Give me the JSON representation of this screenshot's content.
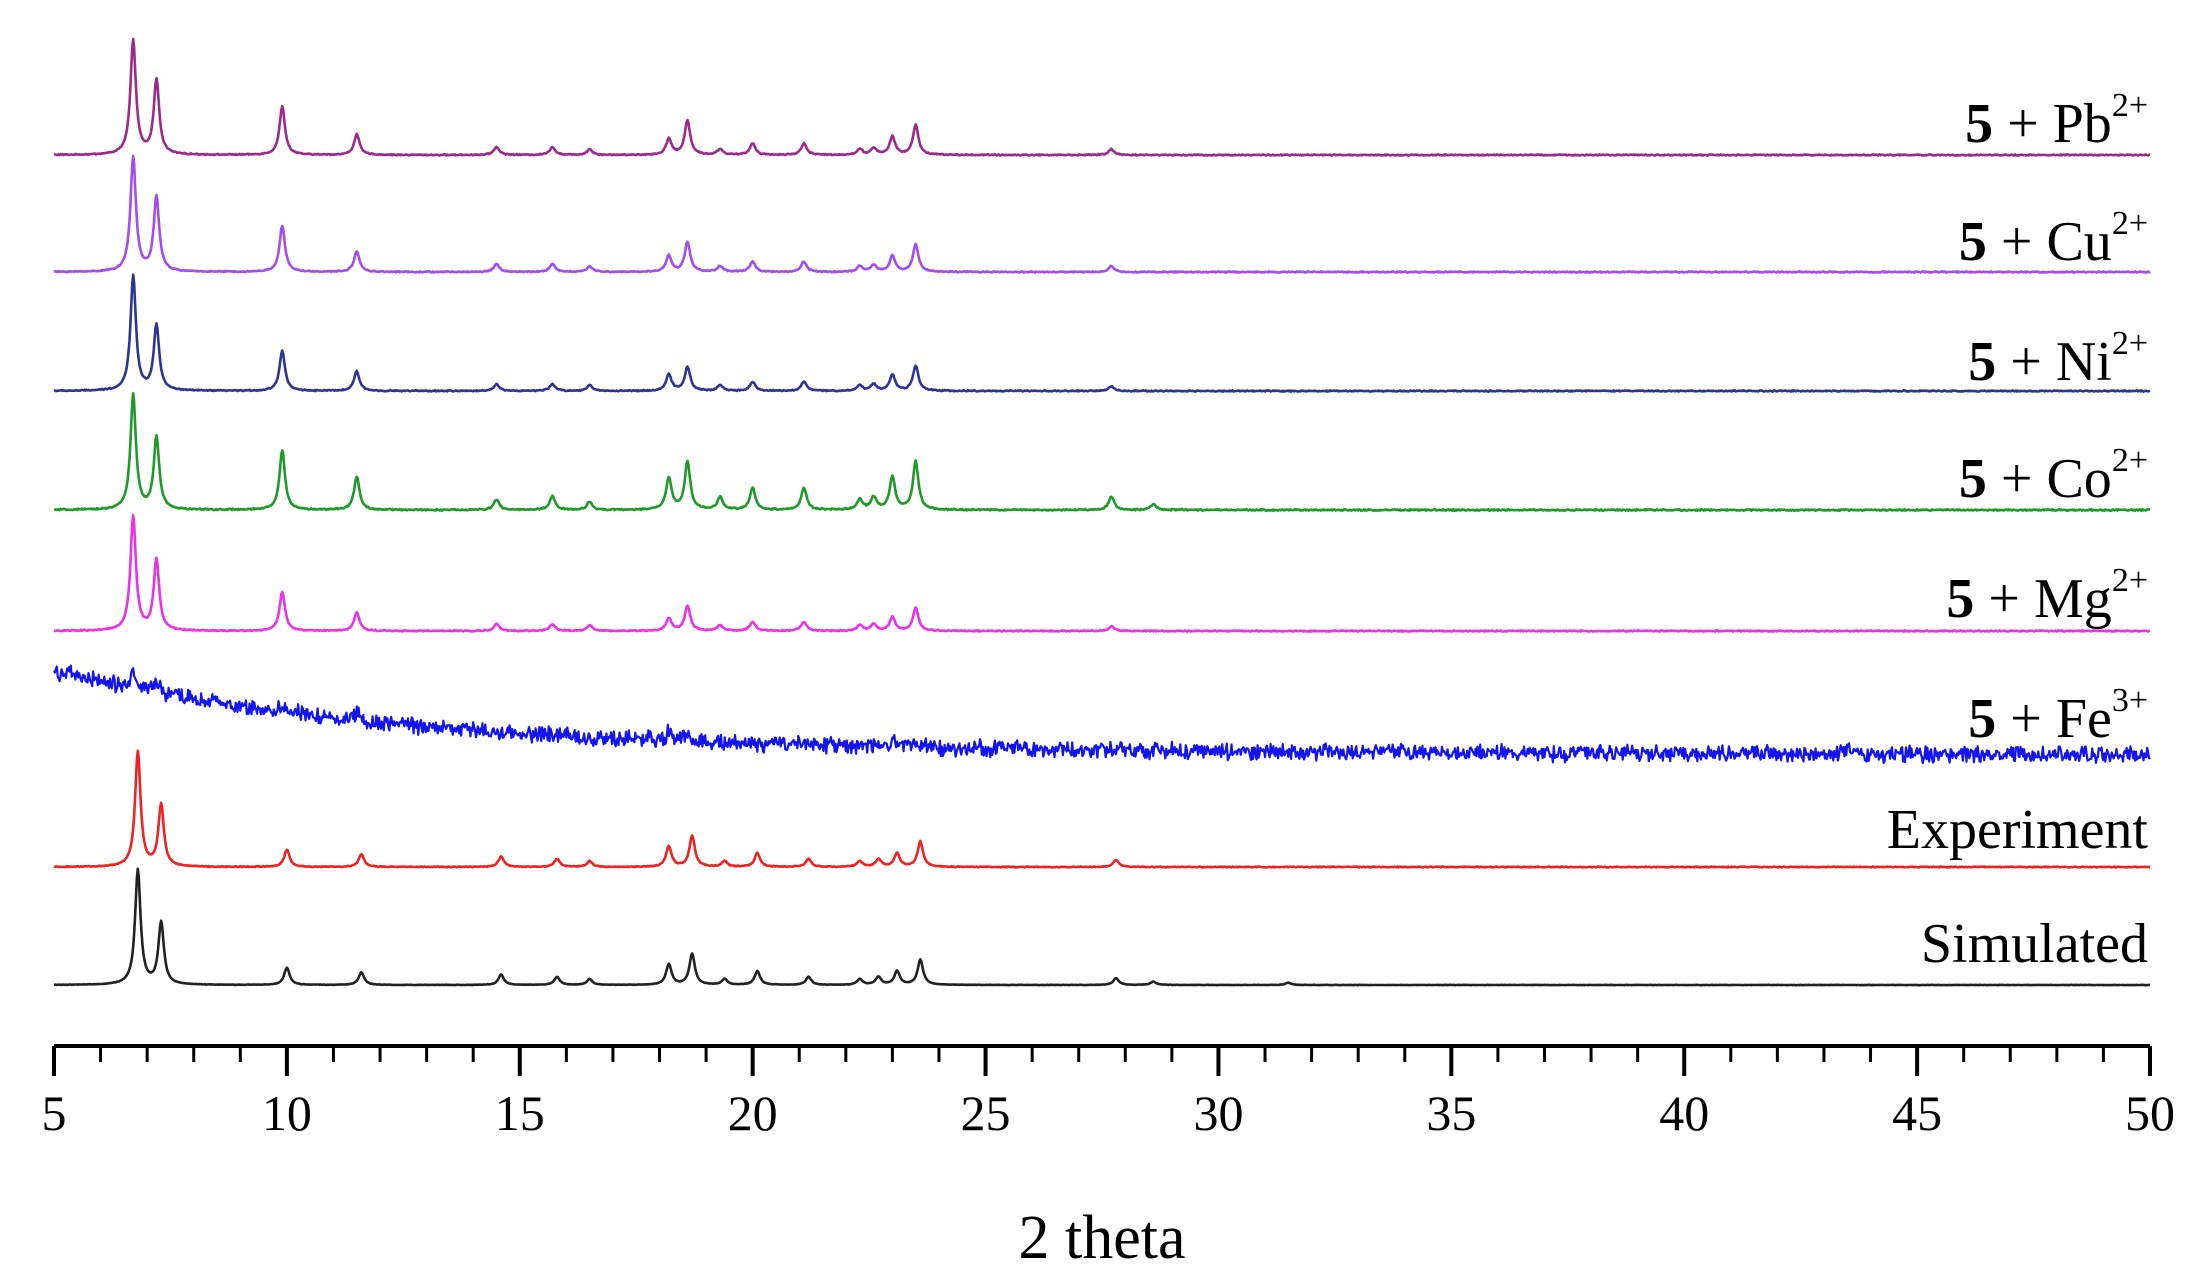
{
  "chart_data": {
    "type": "line",
    "title": "",
    "xlabel": "2 theta",
    "ylabel": "",
    "xlim": [
      5,
      50
    ],
    "xticks": [
      "5",
      "10",
      "15",
      "20",
      "25",
      "30",
      "35",
      "40",
      "45",
      "50"
    ],
    "grid": false,
    "legend": "none",
    "series": [
      {
        "key": "pb",
        "num": "5",
        "plus": " + ",
        "ion": "Pb",
        "charge": "2+",
        "text": "",
        "color": "#9c2a8c",
        "noise": 0.4,
        "decay": 0,
        "peaks": [
          [
            6.7,
            100
          ],
          [
            7.2,
            65
          ],
          [
            9.9,
            42
          ],
          [
            11.5,
            18
          ],
          [
            14.5,
            7
          ],
          [
            15.7,
            7
          ],
          [
            16.5,
            5
          ],
          [
            18.2,
            14
          ],
          [
            18.6,
            30
          ],
          [
            19.3,
            5
          ],
          [
            20.0,
            10
          ],
          [
            21.1,
            10
          ],
          [
            22.3,
            5
          ],
          [
            22.6,
            6
          ],
          [
            23.0,
            16
          ],
          [
            23.5,
            26
          ],
          [
            27.7,
            5
          ]
        ]
      },
      {
        "key": "cu",
        "num": "5",
        "plus": " + ",
        "ion": "Cu",
        "charge": "2+",
        "text": "",
        "color": "#a44cf0",
        "noise": 0.4,
        "decay": 0,
        "peaks": [
          [
            6.7,
            100
          ],
          [
            7.2,
            65
          ],
          [
            9.9,
            40
          ],
          [
            11.5,
            18
          ],
          [
            14.5,
            7
          ],
          [
            15.7,
            7
          ],
          [
            16.5,
            5
          ],
          [
            18.2,
            14
          ],
          [
            18.6,
            26
          ],
          [
            19.3,
            5
          ],
          [
            20.0,
            9
          ],
          [
            21.1,
            9
          ],
          [
            22.3,
            5
          ],
          [
            22.6,
            6
          ],
          [
            23.0,
            14
          ],
          [
            23.5,
            24
          ],
          [
            27.7,
            5
          ]
        ]
      },
      {
        "key": "ni",
        "num": "5",
        "plus": " + ",
        "ion": "Ni",
        "charge": "2+",
        "text": "",
        "color": "#2c3494",
        "noise": 0.4,
        "decay": 0,
        "peaks": [
          [
            6.7,
            100
          ],
          [
            7.2,
            57
          ],
          [
            9.9,
            35
          ],
          [
            11.5,
            17
          ],
          [
            14.5,
            6
          ],
          [
            15.7,
            6
          ],
          [
            16.5,
            5
          ],
          [
            18.2,
            14
          ],
          [
            18.6,
            21
          ],
          [
            19.3,
            5
          ],
          [
            20.0,
            8
          ],
          [
            21.1,
            8
          ],
          [
            22.3,
            5
          ],
          [
            22.6,
            6
          ],
          [
            23.0,
            14
          ],
          [
            23.5,
            22
          ],
          [
            27.7,
            4
          ]
        ]
      },
      {
        "key": "co",
        "num": "5",
        "plus": " + ",
        "ion": "Co",
        "charge": "2+",
        "text": "",
        "color": "#1f9a29",
        "noise": 0.5,
        "decay": 0,
        "peaks": [
          [
            6.7,
            100
          ],
          [
            7.2,
            63
          ],
          [
            9.9,
            52
          ],
          [
            11.5,
            29
          ],
          [
            14.5,
            9
          ],
          [
            15.7,
            12
          ],
          [
            16.5,
            7
          ],
          [
            18.2,
            28
          ],
          [
            18.6,
            42
          ],
          [
            19.3,
            11
          ],
          [
            20.0,
            19
          ],
          [
            21.1,
            19
          ],
          [
            22.3,
            9
          ],
          [
            22.6,
            11
          ],
          [
            23.0,
            29
          ],
          [
            23.5,
            42
          ],
          [
            27.7,
            12
          ],
          [
            28.6,
            5
          ]
        ]
      },
      {
        "key": "mg",
        "num": "5",
        "plus": " + ",
        "ion": "Mg",
        "charge": "2+",
        "text": "",
        "color": "#ea32e8",
        "noise": 0.4,
        "decay": 0,
        "peaks": [
          [
            6.7,
            100
          ],
          [
            7.2,
            62
          ],
          [
            9.9,
            34
          ],
          [
            11.5,
            16
          ],
          [
            14.5,
            6
          ],
          [
            15.7,
            6
          ],
          [
            16.5,
            5
          ],
          [
            18.2,
            11
          ],
          [
            18.6,
            22
          ],
          [
            19.3,
            5
          ],
          [
            20.0,
            8
          ],
          [
            21.1,
            8
          ],
          [
            22.3,
            5
          ],
          [
            22.6,
            6
          ],
          [
            23.0,
            12
          ],
          [
            23.5,
            20
          ],
          [
            27.7,
            4
          ]
        ]
      },
      {
        "key": "fe",
        "num": "5",
        "plus": " + ",
        "ion": "Fe",
        "charge": "3+",
        "text": "",
        "color": "#1414ee",
        "noise": 5.5,
        "decay": 70,
        "peaks": [
          [
            6.7,
            15
          ],
          [
            7.2,
            9
          ],
          [
            9.9,
            6
          ],
          [
            11.5,
            8
          ],
          [
            18.2,
            7
          ],
          [
            18.6,
            8
          ],
          [
            23.0,
            7
          ],
          [
            23.5,
            6
          ],
          [
            43.5,
            5
          ]
        ]
      },
      {
        "key": "exp",
        "num": "",
        "plus": "",
        "ion": "",
        "charge": "",
        "text": "Experiment",
        "color": "#ee2222",
        "noise": 0.3,
        "decay": 0,
        "peaks": [
          [
            6.8,
            100
          ],
          [
            7.3,
            54
          ],
          [
            10.0,
            15
          ],
          [
            11.6,
            11
          ],
          [
            14.6,
            9
          ],
          [
            15.8,
            7
          ],
          [
            16.5,
            5
          ],
          [
            18.2,
            18
          ],
          [
            18.7,
            27
          ],
          [
            19.4,
            5
          ],
          [
            20.1,
            12
          ],
          [
            21.2,
            7
          ],
          [
            22.3,
            5
          ],
          [
            22.7,
            7
          ],
          [
            23.1,
            12
          ],
          [
            23.6,
            22
          ],
          [
            27.8,
            6
          ]
        ]
      },
      {
        "key": "sim",
        "num": "",
        "plus": "",
        "ion": "",
        "charge": "",
        "text": "Simulated",
        "color": "#222222",
        "noise": 0.15,
        "decay": 0,
        "peaks": [
          [
            6.8,
            100
          ],
          [
            7.3,
            54
          ],
          [
            10.0,
            15
          ],
          [
            11.6,
            11
          ],
          [
            14.6,
            9
          ],
          [
            15.8,
            7
          ],
          [
            16.5,
            5
          ],
          [
            18.2,
            18
          ],
          [
            18.7,
            27
          ],
          [
            19.4,
            5
          ],
          [
            20.1,
            12
          ],
          [
            21.2,
            7
          ],
          [
            22.3,
            5
          ],
          [
            22.7,
            7
          ],
          [
            23.1,
            12
          ],
          [
            23.6,
            22
          ],
          [
            27.8,
            6
          ],
          [
            28.6,
            3
          ],
          [
            31.5,
            2
          ]
        ]
      }
    ]
  }
}
